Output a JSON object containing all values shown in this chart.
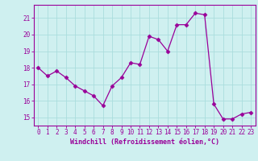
{
  "x": [
    0,
    1,
    2,
    3,
    4,
    5,
    6,
    7,
    8,
    9,
    10,
    11,
    12,
    13,
    14,
    15,
    16,
    17,
    18,
    19,
    20,
    21,
    22,
    23
  ],
  "y": [
    18.0,
    17.5,
    17.8,
    17.4,
    16.9,
    16.6,
    16.3,
    15.7,
    16.9,
    17.4,
    18.3,
    18.2,
    19.9,
    19.7,
    19.0,
    20.6,
    20.6,
    21.3,
    21.2,
    15.8,
    14.9,
    14.9,
    15.2,
    15.3
  ],
  "line_color": "#990099",
  "marker": "D",
  "marker_size": 2.5,
  "bg_color": "#cff0f0",
  "grid_color": "#aadddd",
  "xlabel": "Windchill (Refroidissement éolien,°C)",
  "xlim": [
    -0.5,
    23.5
  ],
  "ylim": [
    14.5,
    21.8
  ],
  "yticks": [
    15,
    16,
    17,
    18,
    19,
    20,
    21
  ],
  "xticks": [
    0,
    1,
    2,
    3,
    4,
    5,
    6,
    7,
    8,
    9,
    10,
    11,
    12,
    13,
    14,
    15,
    16,
    17,
    18,
    19,
    20,
    21,
    22,
    23
  ],
  "tick_color": "#990099",
  "label_color": "#990099",
  "spine_color": "#990099",
  "tick_fontsize": 5.5,
  "xlabel_fontsize": 6.0,
  "linewidth": 0.9
}
